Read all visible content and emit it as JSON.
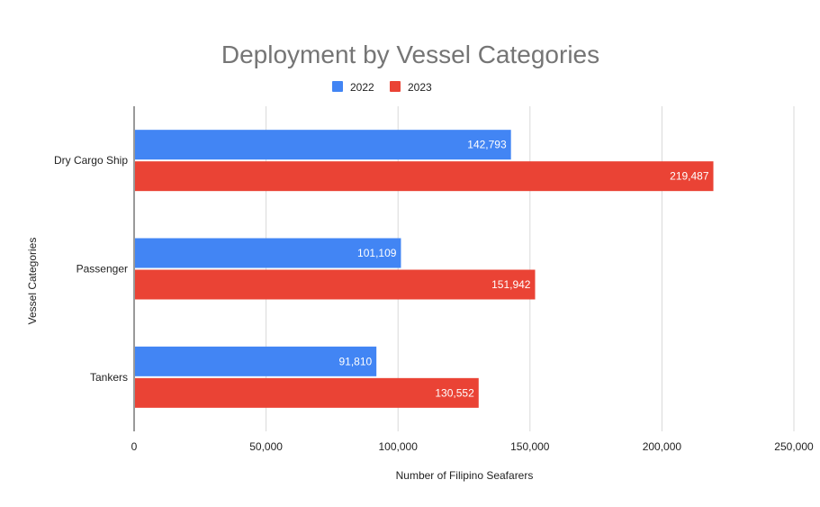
{
  "chart_data": {
    "type": "bar",
    "orientation": "horizontal",
    "title": "Deployment by Vessel Categories",
    "xlabel": "Number of Filipino Seafarers",
    "ylabel": "Vessel Categories",
    "categories": [
      "Dry Cargo Ship",
      "Passenger",
      "Tankers"
    ],
    "series": [
      {
        "name": "2022",
        "color": "#4285f4",
        "values": [
          142793,
          101109,
          91810
        ],
        "labels": [
          "142,793",
          "101,109",
          "91,810"
        ]
      },
      {
        "name": "2023",
        "color": "#ea4335",
        "values": [
          219487,
          151942,
          130552
        ],
        "labels": [
          "219,487",
          "151,942",
          "130,552"
        ]
      }
    ],
    "xlim": [
      0,
      250000
    ],
    "xticks": [
      0,
      50000,
      100000,
      150000,
      200000,
      250000
    ],
    "xtick_labels": [
      "0",
      "50,000",
      "100,000",
      "150,000",
      "200,000",
      "250,000"
    ],
    "grid": true,
    "legend": "top-center"
  }
}
